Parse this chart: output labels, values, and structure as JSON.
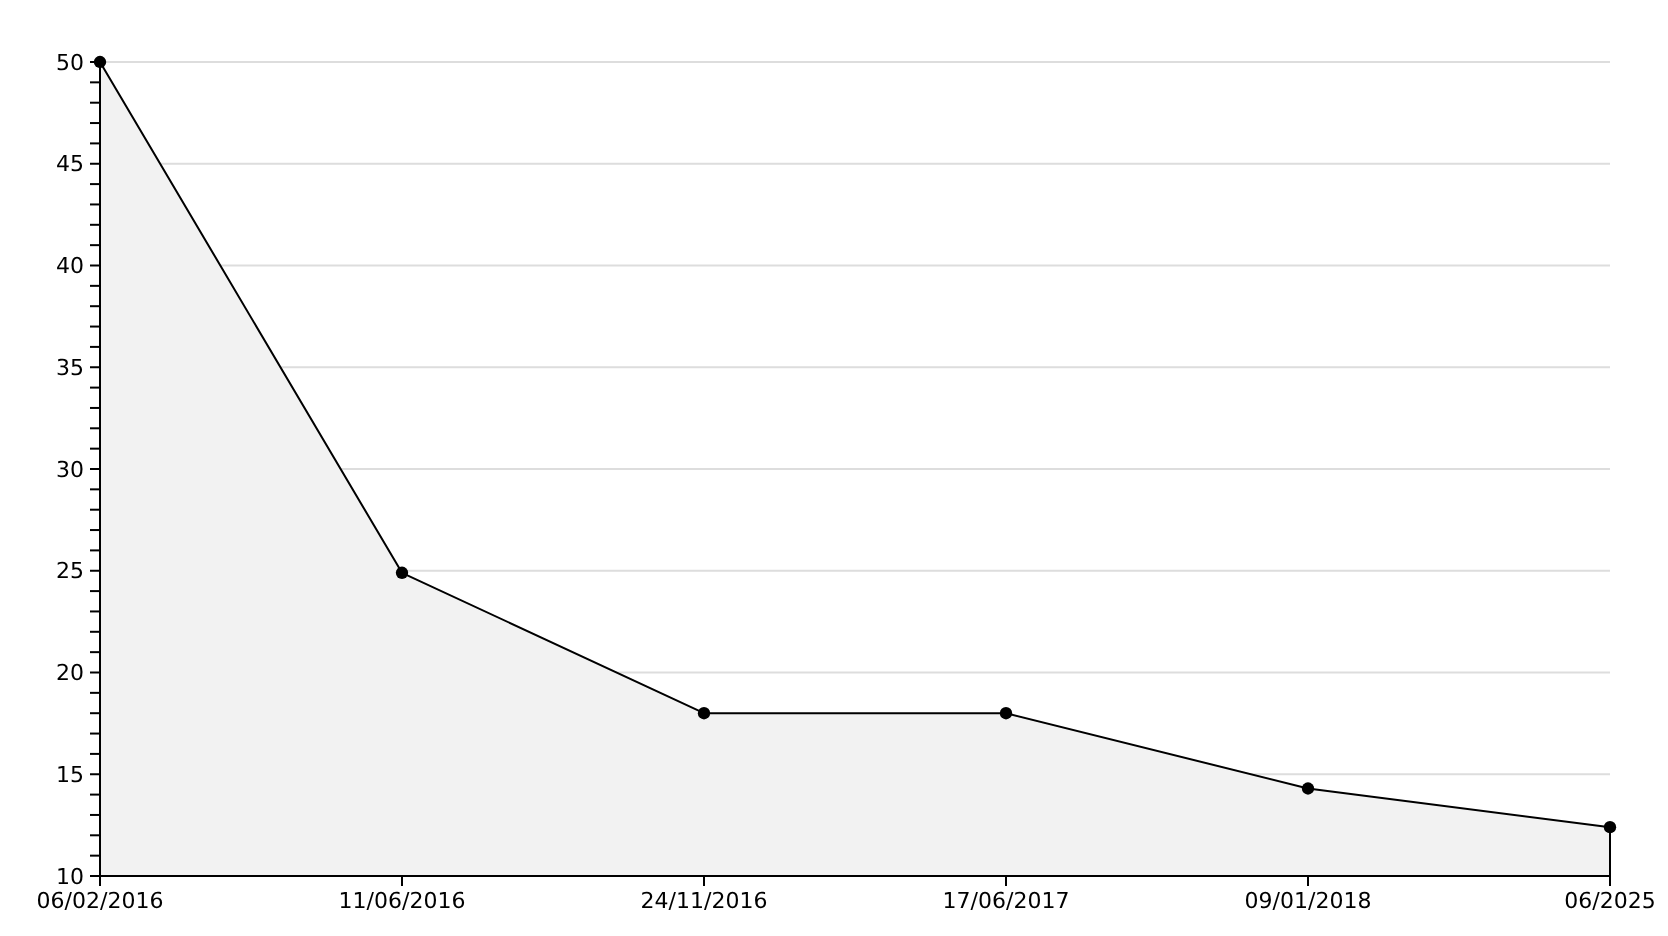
{
  "chart_data": {
    "type": "area",
    "categories": [
      "06/02/2016",
      "11/06/2016",
      "24/11/2016",
      "17/06/2017",
      "09/01/2018",
      "06/2025"
    ],
    "series": [
      {
        "color": "#000000",
        "values": [
          50,
          24.9,
          18,
          18,
          14.3,
          12.4
        ]
      }
    ],
    "ylim": [
      10,
      50
    ],
    "yticks": [
      10,
      {
        "value": 11,
        "label": null
      },
      {
        "value": 12,
        "label": null
      },
      {
        "value": 13,
        "label": null
      },
      {
        "value": 14,
        "label": null
      },
      15,
      {
        "value": 16,
        "label": null
      },
      {
        "value": 17,
        "label": null
      },
      {
        "value": 18,
        "label": null
      },
      {
        "value": 19,
        "label": null
      },
      20,
      {
        "value": 21,
        "label": null
      },
      {
        "value": 22,
        "label": null
      },
      {
        "value": 23,
        "label": null
      },
      {
        "value": 24,
        "label": null
      },
      25,
      {
        "value": 26,
        "label": null
      },
      {
        "value": 27,
        "label": null
      },
      {
        "value": 28,
        "label": null
      },
      {
        "value": 29,
        "label": null
      },
      30,
      {
        "value": 31,
        "label": null
      },
      {
        "value": 32,
        "label": null
      },
      {
        "value": 33,
        "label": null
      },
      {
        "value": 34,
        "label": null
      },
      35,
      {
        "value": 36,
        "label": null
      },
      {
        "value": 37,
        "label": null
      },
      {
        "value": 38,
        "label": null
      },
      {
        "value": 39,
        "label": null
      },
      40,
      {
        "value": 41,
        "label": null
      },
      {
        "value": 42,
        "label": null
      },
      {
        "value": 43,
        "label": null
      },
      {
        "value": 44,
        "label": null
      },
      45,
      {
        "value": 46,
        "label": null
      },
      {
        "value": 47,
        "label": null
      },
      {
        "value": 48,
        "label": null
      },
      {
        "value": 49,
        "label": null
      },
      50
    ],
    "grid": "y",
    "marker": "circle",
    "line_style": "solid"
  }
}
